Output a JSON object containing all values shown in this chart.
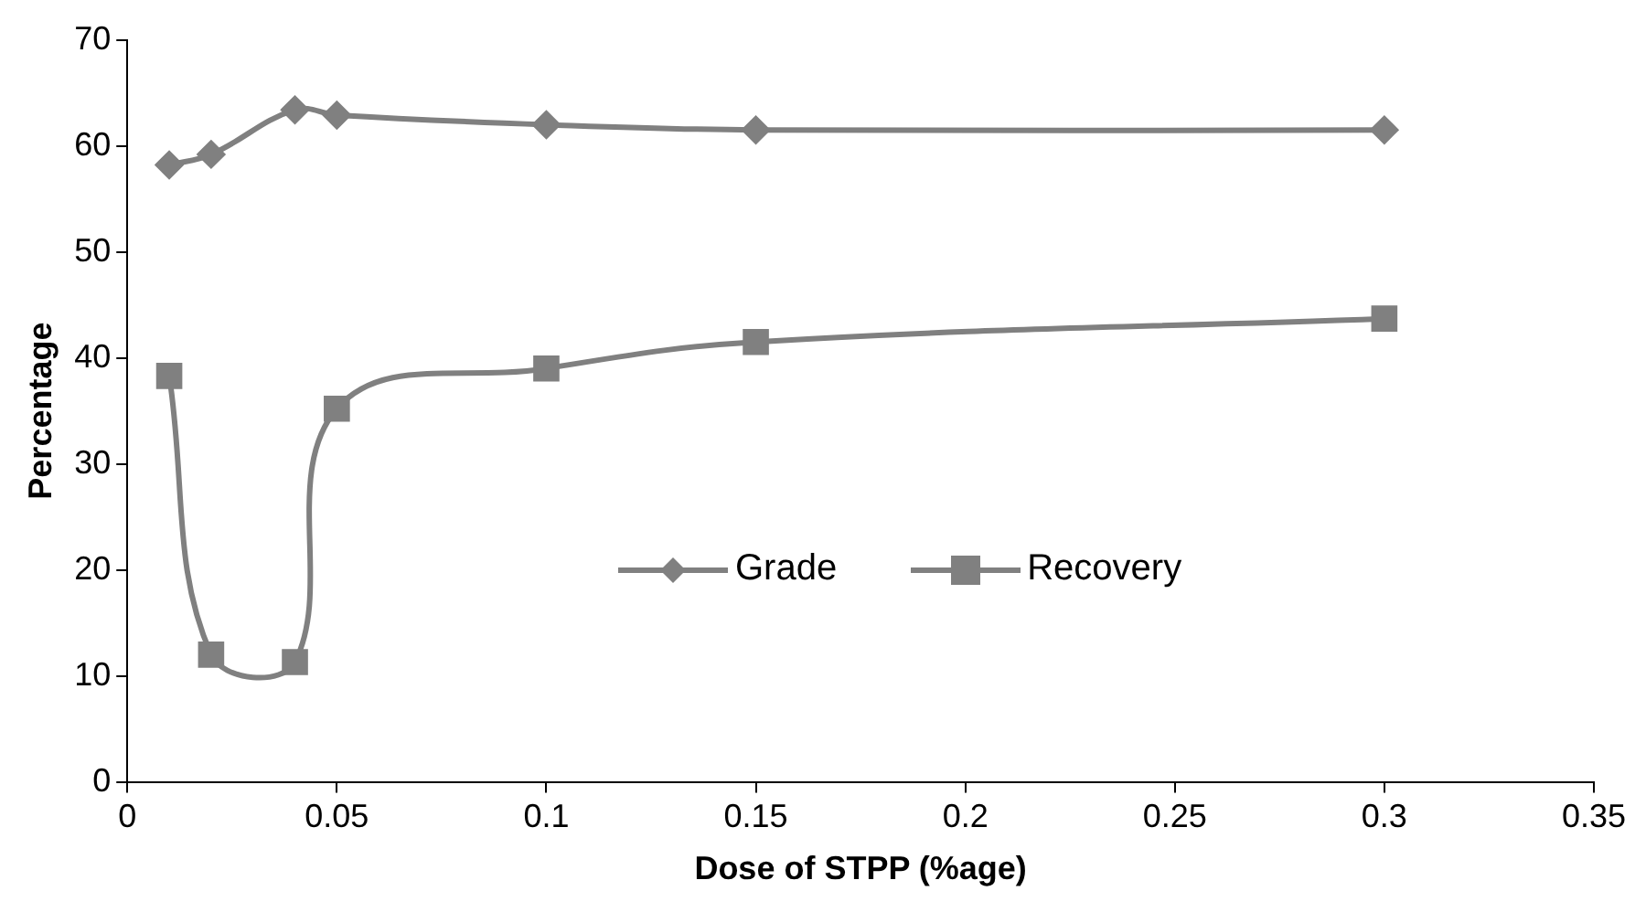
{
  "chart_data": {
    "type": "line",
    "xlabel": "Dose of STPP (%age)",
    "ylabel": "Percentage",
    "xlim": [
      0,
      0.35
    ],
    "xticks": [
      0,
      0.05,
      0.1,
      0.15,
      0.2,
      0.25,
      0.3,
      0.35
    ],
    "ylim": [
      0,
      70
    ],
    "yticks": [
      0,
      10,
      20,
      30,
      40,
      50,
      60,
      70
    ],
    "grid": false,
    "legend": "bottom",
    "line_style": "solid",
    "series": [
      {
        "name": "Grade",
        "color": "#808080",
        "marker": "diamond",
        "x": [
          0.01,
          0.02,
          0.04,
          0.05,
          0.1,
          0.15,
          0.3
        ],
        "values": [
          58.2,
          59.2,
          63.4,
          62.9,
          62.0,
          61.5,
          61.5
        ]
      },
      {
        "name": "Recovery",
        "color": "#808080",
        "marker": "square",
        "x": [
          0.01,
          0.02,
          0.04,
          0.05,
          0.1,
          0.15,
          0.3
        ],
        "values": [
          38.3,
          12.0,
          11.3,
          35.2,
          39.0,
          41.5,
          43.7
        ]
      }
    ]
  }
}
